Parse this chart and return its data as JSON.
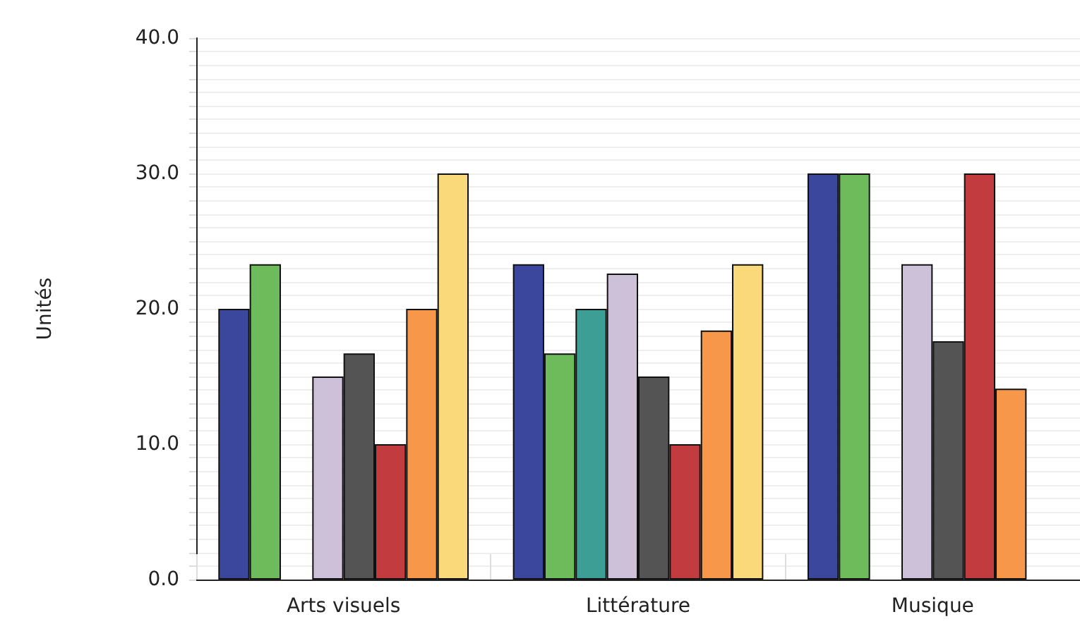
{
  "chart_data": {
    "type": "bar",
    "ylabel": "Unités",
    "categories": [
      "Arts visuels",
      "Littérature",
      "Musique"
    ],
    "series": [
      {
        "color": "#3b479d",
        "values": [
          20,
          23.3,
          30
        ]
      },
      {
        "color": "#6dbb5b",
        "values": [
          23.3,
          16.7,
          30
        ]
      },
      {
        "color": "#3d9e96",
        "values": [
          null,
          20,
          null
        ]
      },
      {
        "color": "#cdc1da",
        "values": [
          15,
          22.6,
          23.3
        ]
      },
      {
        "color": "#545454",
        "values": [
          16.7,
          15,
          17.6
        ]
      },
      {
        "color": "#c23b3e",
        "values": [
          10,
          10,
          30
        ]
      },
      {
        "color": "#f69749",
        "values": [
          20,
          18.4,
          14.1
        ]
      },
      {
        "color": "#fad97a",
        "values": [
          30,
          23.3,
          null
        ]
      }
    ],
    "ylim": [
      0,
      40
    ],
    "yticks": [
      {
        "value": 0,
        "label": "0.0"
      },
      {
        "value": 10,
        "label": "10.0"
      },
      {
        "value": 20,
        "label": "20.0"
      },
      {
        "value": 30,
        "label": "30.0"
      },
      {
        "value": 40,
        "label": "40.0"
      }
    ],
    "grid": "y"
  }
}
